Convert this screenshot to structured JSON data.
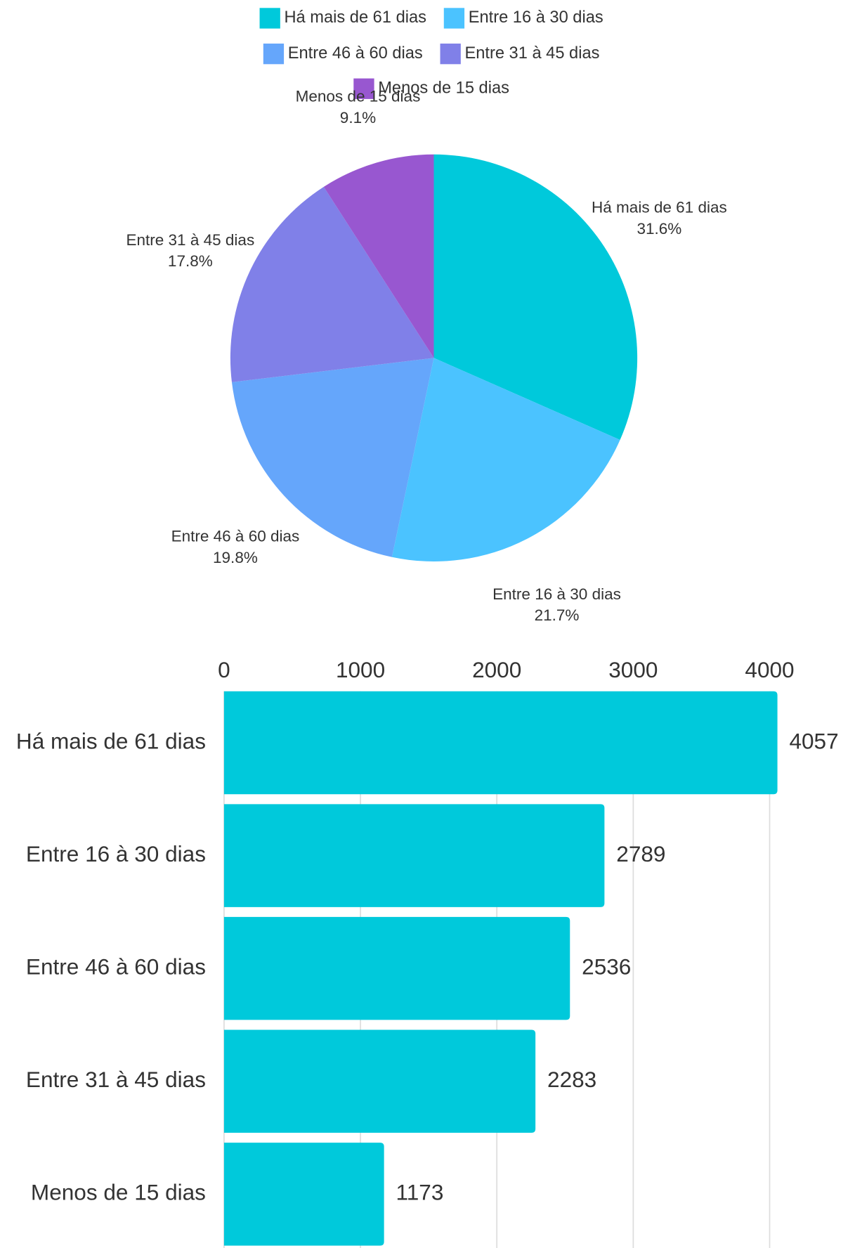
{
  "chart_data": [
    {
      "type": "pie",
      "categories": [
        "Há mais de 61 dias",
        "Entre 16 à 30 dias",
        "Entre 46 à 60 dias",
        "Entre 31 à 45 dias",
        "Menos de 15 dias"
      ],
      "values": [
        31.6,
        21.7,
        19.8,
        17.8,
        9.1
      ],
      "value_labels": [
        "31.6%",
        "21.7%",
        "19.8%",
        "17.8%",
        "9.1%"
      ],
      "colors": [
        "#00c9db",
        "#4bc3ff",
        "#65a6fb",
        "#8080e8",
        "#9857d0"
      ],
      "legend": "top"
    },
    {
      "type": "barh",
      "categories": [
        "Há mais de 61 dias",
        "Entre 16 à 30 dias",
        "Entre 46 à 60 dias",
        "Entre 31 à 45 dias",
        "Menos de 15 dias"
      ],
      "values": [
        4057,
        2789,
        2536,
        2283,
        1173
      ],
      "color": "#00c9db",
      "xlim": [
        0,
        4057
      ],
      "xticks": [
        0,
        1000,
        2000,
        3000,
        4000
      ],
      "grid": true
    }
  ]
}
